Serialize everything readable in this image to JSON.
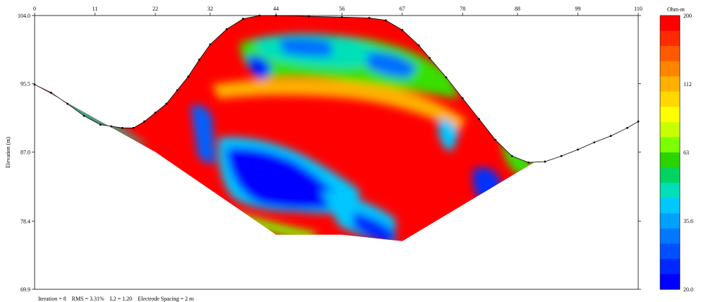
{
  "chart_data": {
    "type": "heatmap",
    "title": "",
    "x_ticks": [
      0,
      11,
      22,
      32,
      44,
      56,
      67,
      78,
      88,
      99,
      110
    ],
    "xlim": [
      0,
      110
    ],
    "ylabel": "Elevation (m)",
    "y_ticks": [
      104.0,
      95.5,
      87.0,
      78.4,
      69.9
    ],
    "ylim": [
      69.9,
      104.0
    ],
    "colorbar": {
      "title": "Ohm-m",
      "tick_labels": [
        "200",
        "112",
        "63",
        "35.6",
        "20.0"
      ],
      "colors": [
        "#ff0000",
        "#ff2a00",
        "#ff5a00",
        "#ff8400",
        "#ffb000",
        "#ffd800",
        "#ffff00",
        "#c8ff00",
        "#7cff00",
        "#2ad400",
        "#00d460",
        "#00e0b8",
        "#00c8ff",
        "#00a0ff",
        "#0078ff",
        "#0050ff",
        "#0028ff",
        "#0000ff"
      ]
    },
    "surface_elevation": [
      [
        0,
        95.4
      ],
      [
        3,
        94.4
      ],
      [
        6,
        93.0
      ],
      [
        9,
        91.5
      ],
      [
        12,
        90.4
      ],
      [
        14,
        90.2
      ],
      [
        16,
        90.0
      ],
      [
        18,
        90.0
      ],
      [
        20,
        90.8
      ],
      [
        22,
        91.9
      ],
      [
        24,
        93.0
      ],
      [
        26,
        94.7
      ],
      [
        28,
        96.4
      ],
      [
        30,
        98.5
      ],
      [
        32,
        100.4
      ],
      [
        35,
        102.3
      ],
      [
        38,
        103.6
      ],
      [
        41,
        104.0
      ],
      [
        44,
        104.0
      ],
      [
        50,
        103.9
      ],
      [
        56,
        103.8
      ],
      [
        61,
        103.7
      ],
      [
        64,
        103.4
      ],
      [
        67,
        102.2
      ],
      [
        70,
        100.3
      ],
      [
        72,
        98.7
      ],
      [
        75,
        96.3
      ],
      [
        78,
        93.7
      ],
      [
        81,
        91.1
      ],
      [
        84,
        88.5
      ],
      [
        87,
        86.5
      ],
      [
        90,
        85.7
      ],
      [
        93,
        85.8
      ],
      [
        96,
        86.5
      ],
      [
        99,
        87.3
      ],
      [
        102,
        88.2
      ],
      [
        105,
        89.0
      ],
      [
        108,
        90.0
      ],
      [
        110,
        90.8
      ]
    ],
    "footer": {
      "iteration": "Iteration = 8",
      "rms": "RMS = 3.31%",
      "l2": "L2 = 1.20",
      "spacing": "Electrode Spacing = 2 m"
    }
  }
}
